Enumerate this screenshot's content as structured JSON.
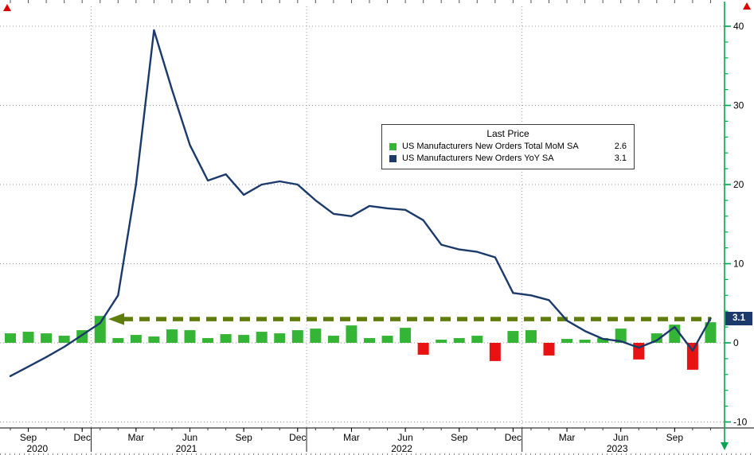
{
  "colors": {
    "line": "#1b3a6b",
    "bar_pos": "#35b535",
    "bar_neg": "#e81212",
    "axis_green": "#00a651",
    "arrow": "#5e7d0a",
    "grid": "#9a9a9a",
    "badge_bg": "#1b3a6b",
    "badge_fg": "#ffffff",
    "marker_red": "#dd0000"
  },
  "legend": {
    "title": "Last Price",
    "rows": [
      {
        "label": "US Manufacturers New Orders Total MoM SA",
        "value": "2.6",
        "swatch": "#35b535"
      },
      {
        "label": "US Manufacturers New Orders YoY SA",
        "value": "3.1",
        "swatch": "#1b3a6b"
      }
    ]
  },
  "badge": {
    "text": "3.1"
  },
  "chart_data": {
    "type": "bar+line",
    "months": [
      "2020-08",
      "2020-09",
      "2020-10",
      "2020-11",
      "2020-12",
      "2021-01",
      "2021-02",
      "2021-03",
      "2021-04",
      "2021-05",
      "2021-06",
      "2021-07",
      "2021-08",
      "2021-09",
      "2021-10",
      "2021-11",
      "2021-12",
      "2022-01",
      "2022-02",
      "2022-03",
      "2022-04",
      "2022-05",
      "2022-06",
      "2022-07",
      "2022-08",
      "2022-09",
      "2022-10",
      "2022-11",
      "2022-12",
      "2023-01",
      "2023-02",
      "2023-03",
      "2023-04",
      "2023-05",
      "2023-06",
      "2023-07",
      "2023-08",
      "2023-09",
      "2023-10",
      "2023-11"
    ],
    "series": [
      {
        "name": "US Manufacturers New Orders Total MoM SA",
        "type": "bar",
        "last": 2.6,
        "values": [
          1.2,
          1.4,
          1.2,
          0.9,
          1.6,
          3.4,
          0.6,
          1.0,
          0.8,
          1.7,
          1.6,
          0.6,
          1.1,
          1.0,
          1.4,
          1.2,
          1.6,
          1.8,
          0.9,
          2.2,
          0.6,
          0.9,
          1.9,
          -1.5,
          0.4,
          0.6,
          0.9,
          -2.3,
          1.5,
          1.6,
          -1.6,
          0.5,
          0.4,
          0.6,
          1.8,
          -2.1,
          1.2,
          2.3,
          -3.4,
          2.6
        ]
      },
      {
        "name": "US Manufacturers New Orders YoY SA",
        "type": "line",
        "last": 3.1,
        "values": [
          -4.2,
          -3.0,
          -1.8,
          -0.5,
          1.0,
          2.5,
          6.0,
          20.0,
          39.5,
          32.0,
          25.0,
          20.5,
          21.3,
          18.7,
          20.0,
          20.4,
          20.0,
          18.0,
          16.3,
          16.0,
          17.3,
          17.0,
          16.8,
          15.5,
          12.4,
          11.8,
          11.5,
          10.8,
          6.3,
          6.0,
          5.4,
          2.8,
          1.5,
          0.5,
          0.2,
          -0.6,
          0.3,
          2.0,
          -1.0,
          3.1
        ]
      }
    ],
    "ylim": [
      -10,
      40
    ],
    "y_ticks": [
      -10,
      0,
      10,
      20,
      30,
      40
    ],
    "x_axis": {
      "month_ticks": [
        {
          "label": "Sep",
          "i": 1
        },
        {
          "label": "Dec",
          "i": 4
        },
        {
          "label": "Mar",
          "i": 7
        },
        {
          "label": "Jun",
          "i": 10
        },
        {
          "label": "Sep",
          "i": 13
        },
        {
          "label": "Dec",
          "i": 16
        },
        {
          "label": "Mar",
          "i": 19
        },
        {
          "label": "Jun",
          "i": 22
        },
        {
          "label": "Sep",
          "i": 25
        },
        {
          "label": "Dec",
          "i": 28
        },
        {
          "label": "Mar",
          "i": 31
        },
        {
          "label": "Jun",
          "i": 34
        },
        {
          "label": "Sep",
          "i": 37
        }
      ],
      "years": [
        {
          "label": "2020",
          "i": 1.5
        },
        {
          "label": "2021",
          "i": 9.8
        },
        {
          "label": "2022",
          "i": 21.8
        },
        {
          "label": "2023",
          "i": 33.8
        }
      ],
      "year_boundaries": [
        4.5,
        16.5,
        28.5
      ]
    },
    "annotations": [
      {
        "type": "dashed-arrow",
        "level": 3.0,
        "direction": "left"
      }
    ],
    "legend_position": "center",
    "grid": "dotted"
  }
}
